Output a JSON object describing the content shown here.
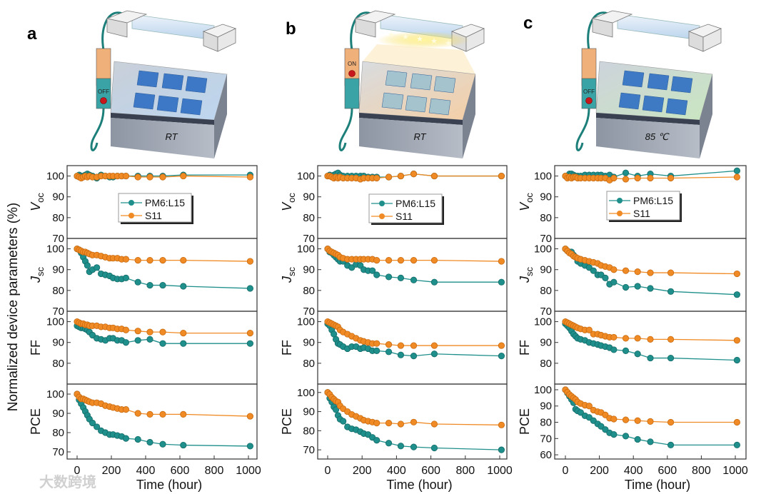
{
  "figure": {
    "ylabel": "Normalized device parameters (%)",
    "xlabel": "Time (hour)",
    "watermark": "大数跨境",
    "colors": {
      "PM6:L15": "#1f8f8c",
      "S11": "#f08a24"
    }
  },
  "panels": [
    {
      "label": "a",
      "switch": "OFF",
      "stage": "RT"
    },
    {
      "label": "b",
      "switch": "ON",
      "stage": "RT"
    },
    {
      "label": "c",
      "switch": "OFF",
      "stage": "85 ℃"
    }
  ],
  "chart_data": [
    {
      "type": "line",
      "panel": "a",
      "xlabel": "Time (hour)",
      "ylabel": "Normalized device parameters (%)",
      "xlim": [
        -25,
        1060
      ],
      "xticks": [
        0,
        200,
        400,
        600,
        800,
        1000
      ],
      "x": [
        0,
        12,
        24,
        36,
        48,
        60,
        72,
        90,
        115,
        140,
        165,
        190,
        210,
        235,
        260,
        285,
        355,
        425,
        500,
        620,
        1010
      ],
      "legend": [
        "PM6:L15",
        "S11"
      ],
      "legend_position": "upper-middle of top subplot",
      "error_approx": 1.5,
      "subplots": [
        {
          "label": "V",
          "sub": "oc",
          "ylim": [
            70,
            105
          ],
          "yticks": [
            70,
            80,
            90,
            100
          ],
          "series": [
            {
              "name": "PM6:L15",
              "values": [
                100,
                100.5,
                100,
                100,
                100.5,
                101,
                100.5,
                100,
                99,
                100.5,
                100,
                99.5,
                99.5,
                100,
                100,
                100,
                100,
                100,
                100,
                100.5,
                100.5
              ]
            },
            {
              "name": "S11",
              "values": [
                100,
                99.5,
                99,
                99.5,
                100,
                99.5,
                100,
                99.5,
                99.5,
                100,
                100,
                100,
                100,
                100,
                100,
                100,
                99.5,
                99.5,
                99.5,
                100,
                99.5
              ]
            }
          ]
        },
        {
          "label": "J",
          "sub": "sc",
          "ylim": [
            70,
            105
          ],
          "yticks": [
            70,
            80,
            90,
            100
          ],
          "series": [
            {
              "name": "PM6:L15",
              "values": [
                100,
                99.5,
                98,
                96,
                94,
                92,
                89,
                90,
                91,
                88,
                87.5,
                87,
                86,
                85.5,
                85.5,
                86,
                84,
                82.5,
                82.5,
                82,
                81
              ]
            },
            {
              "name": "S11",
              "values": [
                100,
                99.5,
                99,
                98.5,
                98.5,
                98,
                97.5,
                97,
                97,
                96.5,
                96,
                95.5,
                95.5,
                95.5,
                95,
                95,
                94.5,
                94.5,
                94.5,
                94.5,
                94
              ]
            }
          ]
        },
        {
          "label": "FF",
          "sub": "",
          "ylim": [
            70,
            105
          ],
          "yticks": [
            80,
            90,
            100
          ],
          "series": [
            {
              "name": "PM6:L15",
              "values": [
                98,
                97.5,
                97,
                97,
                96.5,
                96,
                95,
                93.5,
                92,
                91.5,
                91,
                92,
                92,
                91,
                91,
                90,
                91,
                91.5,
                89.5,
                89.5,
                89.5
              ]
            },
            {
              "name": "S11",
              "values": [
                100,
                99.5,
                99,
                99,
                98.5,
                98.5,
                98,
                98,
                98,
                97.5,
                97.5,
                97,
                97,
                96.5,
                96.5,
                96,
                95.5,
                95,
                95,
                94.5,
                94.5
              ]
            }
          ]
        },
        {
          "label": "PCE",
          "sub": "",
          "ylim": [
            66.3,
            105.2
          ],
          "yticks": [
            70,
            80,
            90,
            100
          ],
          "series": [
            {
              "name": "PM6:L15",
              "values": [
                100,
                97,
                95,
                93,
                91,
                89,
                87,
                85,
                83,
                81,
                80,
                79,
                79,
                78.5,
                78,
                77,
                76.5,
                75,
                74,
                73.5,
                73
              ]
            },
            {
              "name": "S11",
              "values": [
                100,
                98.5,
                97.5,
                97.5,
                97,
                96.5,
                96,
                95.5,
                95.5,
                95,
                94,
                93.5,
                93,
                92.5,
                92,
                92,
                90,
                89.5,
                89.5,
                89.5,
                88.5
              ]
            }
          ]
        }
      ]
    },
    {
      "type": "line",
      "panel": "b",
      "xlabel": "Time (hour)",
      "xlim": [
        -25,
        1060
      ],
      "xticks": [
        0,
        200,
        400,
        600,
        800,
        1000
      ],
      "x": [
        0,
        12,
        24,
        36,
        48,
        60,
        72,
        90,
        115,
        140,
        165,
        190,
        210,
        235,
        260,
        285,
        355,
        425,
        500,
        620,
        1010
      ],
      "legend": [
        "PM6:L15",
        "S11"
      ],
      "error_approx": 1.5,
      "subplots": [
        {
          "label": "V",
          "sub": "oc",
          "ylim": [
            70,
            105
          ],
          "yticks": [
            70,
            80,
            90,
            100
          ],
          "series": [
            {
              "name": "PM6:L15",
              "values": [
                100,
                100.5,
                100,
                100.5,
                101,
                101.5,
                100.5,
                100,
                100,
                100,
                100,
                100,
                100,
                99.5,
                99.5,
                99.5,
                99.5,
                100,
                101,
                100,
                100
              ]
            },
            {
              "name": "S11",
              "values": [
                100,
                100,
                99.5,
                99,
                99.5,
                99,
                99.5,
                99,
                99,
                99,
                99,
                98.5,
                99,
                99,
                99,
                99,
                99.5,
                100,
                101,
                100,
                100
              ]
            }
          ]
        },
        {
          "label": "J",
          "sub": "sc",
          "ylim": [
            70,
            105
          ],
          "yticks": [
            70,
            80,
            90,
            100
          ],
          "series": [
            {
              "name": "PM6:L15",
              "values": [
                100,
                98.5,
                98,
                97,
                96,
                95,
                94,
                94,
                92,
                91,
                92.5,
                92,
                90,
                89.5,
                89.5,
                87.5,
                86.5,
                86,
                85,
                84,
                84
              ]
            },
            {
              "name": "S11",
              "values": [
                100,
                99,
                98.5,
                98,
                97.5,
                97,
                96,
                95.5,
                95,
                95,
                95,
                95,
                95,
                95,
                95,
                94.5,
                94.5,
                94.5,
                94.5,
                94.5,
                94
              ]
            }
          ]
        },
        {
          "label": "FF",
          "sub": "",
          "ylim": [
            70,
            105
          ],
          "yticks": [
            80,
            90,
            100
          ],
          "series": [
            {
              "name": "PM6:L15",
              "values": [
                99,
                98,
                96,
                94,
                91.5,
                89.5,
                89,
                88,
                87,
                88,
                88,
                87,
                87.5,
                87,
                86,
                86,
                85.5,
                84,
                83.5,
                84.5,
                83.5
              ]
            },
            {
              "name": "S11",
              "values": [
                100,
                99.5,
                99,
                98.5,
                98,
                97.5,
                96,
                95,
                94,
                93,
                92,
                91,
                90.5,
                90,
                89.5,
                89.5,
                89,
                88.5,
                88.5,
                88.5,
                88.5
              ]
            }
          ]
        },
        {
          "label": "PCE",
          "sub": "",
          "ylim": [
            65.2,
            104.4
          ],
          "yticks": [
            70,
            80,
            90,
            100
          ],
          "series": [
            {
              "name": "PM6:L15",
              "values": [
                100,
                97,
                95,
                92.5,
                91,
                88,
                86,
                85,
                82,
                81,
                80.5,
                79.5,
                78.5,
                78,
                76.5,
                75,
                73.5,
                72,
                71.5,
                71,
                70
              ]
            },
            {
              "name": "S11",
              "values": [
                100,
                99,
                97.5,
                96.5,
                95.5,
                95,
                93,
                91.5,
                90,
                88.5,
                87.5,
                86.5,
                85.5,
                85,
                84.5,
                84,
                84,
                83.5,
                84.5,
                83.5,
                83
              ]
            }
          ]
        }
      ]
    },
    {
      "type": "line",
      "panel": "c",
      "xlabel": "Time (hour)",
      "xlim": [
        -25,
        1060
      ],
      "xticks": [
        0,
        200,
        400,
        600,
        800,
        1000
      ],
      "x": [
        0,
        12,
        24,
        36,
        48,
        60,
        72,
        90,
        115,
        140,
        165,
        190,
        210,
        235,
        260,
        285,
        355,
        425,
        500,
        620,
        1010
      ],
      "legend": [
        "PM6:L15",
        "S11"
      ],
      "error_approx": 1.5,
      "subplots": [
        {
          "label": "V",
          "sub": "oc",
          "ylim": [
            70,
            105
          ],
          "yticks": [
            70,
            80,
            90,
            100
          ],
          "series": [
            {
              "name": "PM6:L15",
              "values": [
                100,
                100,
                101,
                101,
                100.5,
                100,
                100,
                100,
                100.5,
                100.5,
                100.5,
                100.5,
                100.5,
                100,
                100.5,
                99.5,
                101.5,
                100,
                101,
                100,
                102.5
              ]
            },
            {
              "name": "S11",
              "values": [
                100,
                99,
                99.5,
                99,
                99.5,
                99.5,
                99,
                99,
                99,
                99,
                99,
                99,
                99,
                99,
                98,
                99,
                98.5,
                99,
                99,
                99,
                99.5
              ]
            }
          ]
        },
        {
          "label": "J",
          "sub": "sc",
          "ylim": [
            70,
            105
          ],
          "yticks": [
            70,
            80,
            90,
            100
          ],
          "series": [
            {
              "name": "PM6:L15",
              "values": [
                100,
                99,
                98.5,
                98.5,
                97,
                96,
                94,
                93,
                92,
                91,
                89.5,
                87.5,
                87.5,
                86,
                83,
                84,
                81.5,
                82,
                81,
                79.5,
                78
              ]
            },
            {
              "name": "S11",
              "values": [
                100,
                99,
                98,
                97.5,
                96.5,
                96,
                95.5,
                95,
                94.5,
                94,
                93.5,
                93,
                92,
                91.5,
                91,
                90,
                89.5,
                89,
                88.5,
                88.5,
                88
              ]
            }
          ]
        },
        {
          "label": "FF",
          "sub": "",
          "ylim": [
            70,
            105
          ],
          "yticks": [
            80,
            90,
            100
          ],
          "series": [
            {
              "name": "PM6:L15",
              "values": [
                99,
                98,
                97,
                95.5,
                94,
                93,
                92,
                91.5,
                91,
                90,
                89.5,
                89,
                88.5,
                88,
                87.5,
                86.5,
                86,
                84.5,
                82.5,
                82.5,
                81.5
              ]
            },
            {
              "name": "S11",
              "values": [
                100,
                99.5,
                99,
                98.5,
                98,
                97.5,
                97,
                96.5,
                96,
                96,
                94,
                94,
                93.5,
                93,
                92.5,
                92.5,
                92,
                92,
                91.5,
                91.5,
                91
              ]
            }
          ]
        },
        {
          "label": "PCE",
          "sub": "",
          "ylim": [
            57.4,
            103.5
          ],
          "yticks": [
            60,
            70,
            80,
            90,
            100
          ],
          "series": [
            {
              "name": "PM6:L15",
              "values": [
                100,
                98,
                96,
                94,
                92,
                88,
                87,
                86,
                84,
                83,
                81,
                79,
                77.5,
                75.5,
                73.5,
                72.5,
                71.5,
                69.5,
                68,
                66,
                66
              ]
            },
            {
              "name": "S11",
              "values": [
                100,
                98.5,
                97,
                96,
                95,
                94,
                92.5,
                91.5,
                90.5,
                90,
                87.5,
                86.5,
                86,
                84.5,
                82.5,
                82,
                81.5,
                81,
                80.5,
                80,
                80
              ]
            }
          ]
        }
      ]
    }
  ]
}
